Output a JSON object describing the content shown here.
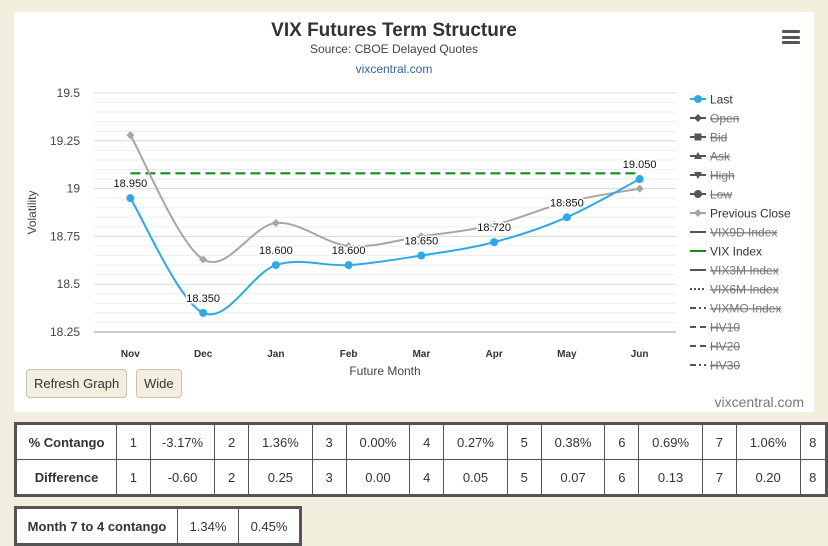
{
  "header": {
    "title": "VIX Futures Term Structure",
    "subtitle": "Source: CBOE Delayed Quotes",
    "source_link": "vixcentral.com",
    "credit": "vixcentral.com"
  },
  "buttons": {
    "refresh": "Refresh Graph",
    "wide": "Wide"
  },
  "chart_data": {
    "type": "line",
    "xlabel": "Future Month",
    "ylabel": "Volatility",
    "categories": [
      "Nov",
      "Dec",
      "Jan",
      "Feb",
      "Mar",
      "Apr",
      "May",
      "Jun"
    ],
    "ylim": [
      18.25,
      19.5
    ],
    "yticks": [
      "19.5",
      "19.25",
      "19",
      "18.75",
      "18.5",
      "18.25"
    ],
    "series": [
      {
        "name": "Last",
        "color": "#2fa8e8",
        "values": [
          18.95,
          18.35,
          18.6,
          18.6,
          18.65,
          18.72,
          18.85,
          19.05
        ],
        "labels": [
          "18.950",
          "18.350",
          "18.600",
          "18.600",
          "18.650",
          "18.720",
          "18.850",
          "19.050"
        ]
      },
      {
        "name": "Previous Close",
        "color": "#a6a6a6",
        "values": [
          19.28,
          18.63,
          18.82,
          18.7,
          18.75,
          18.81,
          18.93,
          19.0
        ]
      }
    ],
    "reference_line": {
      "name": "VIX Index",
      "value": 19.08,
      "color": "#1a8a1a"
    },
    "legend": [
      {
        "name": "Last",
        "symbol": "circle",
        "color": "#2fa8e8",
        "hidden": false
      },
      {
        "name": "Open",
        "symbol": "diamond",
        "color": "#555",
        "hidden": true
      },
      {
        "name": "Bid",
        "symbol": "square",
        "color": "#555",
        "hidden": true
      },
      {
        "name": "Ask",
        "symbol": "triangle",
        "color": "#555",
        "hidden": true
      },
      {
        "name": "High",
        "symbol": "triangle-down",
        "color": "#555",
        "hidden": true
      },
      {
        "name": "Low",
        "symbol": "circle",
        "color": "#555",
        "hidden": true
      },
      {
        "name": "Previous Close",
        "symbol": "diamond",
        "color": "#a6a6a6",
        "hidden": false
      },
      {
        "name": "VIX9D Index",
        "symbol": "line",
        "color": "#555",
        "hidden": true
      },
      {
        "name": "VIX Index",
        "symbol": "line",
        "color": "#1a8a1a",
        "hidden": false
      },
      {
        "name": "VIX3M Index",
        "symbol": "line",
        "color": "#555",
        "hidden": true
      },
      {
        "name": "VIX6M Index",
        "symbol": "dotted",
        "color": "#555",
        "hidden": true
      },
      {
        "name": "VIXMO Index",
        "symbol": "dashdot",
        "color": "#555",
        "hidden": true
      },
      {
        "name": "HV10",
        "symbol": "dash",
        "color": "#555",
        "hidden": true
      },
      {
        "name": "HV20",
        "symbol": "dash",
        "color": "#555",
        "hidden": true
      },
      {
        "name": "HV30",
        "symbol": "dashdot",
        "color": "#555",
        "hidden": true
      }
    ]
  },
  "contango_table": {
    "rows": [
      {
        "label": "% Contango",
        "cells": [
          "1",
          "-3.17%",
          "2",
          "1.36%",
          "3",
          "0.00%",
          "4",
          "0.27%",
          "5",
          "0.38%",
          "6",
          "0.69%",
          "7",
          "1.06%",
          "8"
        ]
      },
      {
        "label": "Difference",
        "cells": [
          "1",
          "-0.60",
          "2",
          "0.25",
          "3",
          "0.00",
          "4",
          "0.05",
          "5",
          "0.07",
          "6",
          "0.13",
          "7",
          "0.20",
          "8"
        ]
      }
    ]
  },
  "month74": {
    "label": "Month 7 to 4 contango",
    "v1": "1.34%",
    "v2": "0.45%"
  }
}
